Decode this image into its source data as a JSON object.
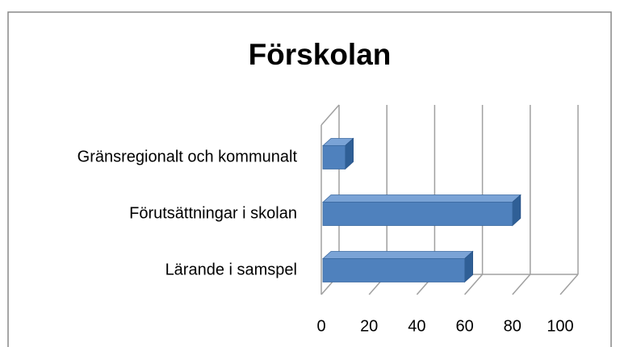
{
  "chart_data": {
    "type": "bar3d_horizontal",
    "title": "Förskolan",
    "categories": [
      "Gränsregionalt och kommunalt",
      "Förutsättningar i skolan",
      "Lärande i samspel"
    ],
    "values": [
      10,
      80,
      60
    ],
    "color": "#4f81bd",
    "xlim": [
      0,
      100
    ],
    "xticks": [
      0,
      20,
      40,
      60,
      80,
      100
    ],
    "grid": true
  }
}
